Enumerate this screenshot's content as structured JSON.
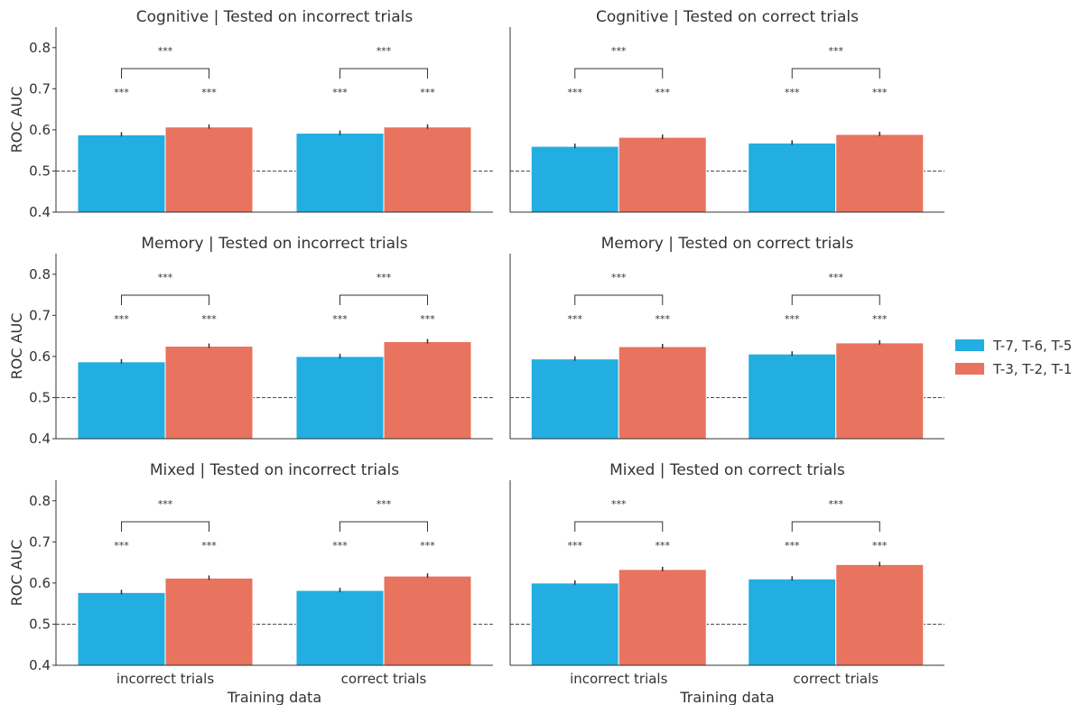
{
  "chart_data": {
    "type": "bar",
    "layout": {
      "rows": 3,
      "cols": 2
    },
    "xlabel": "Training data",
    "ylabel": "ROC AUC",
    "ylim": [
      0.4,
      0.85
    ],
    "yticks": [
      "0.4",
      "0.5",
      "0.6",
      "0.7",
      "0.8"
    ],
    "reference_line": 0.5,
    "categories": [
      "incorrect trials",
      "correct trials"
    ],
    "legend": {
      "placement": "right",
      "entries": [
        {
          "label": "T-7, T-6, T-5",
          "color": "#22aee0"
        },
        {
          "label": "T-3, T-2, T-1",
          "color": "#e8735e"
        }
      ]
    },
    "significance_label": "***",
    "panels": [
      {
        "title": "Cognitive | Tested on incorrect trials",
        "series": [
          {
            "name": "T-7, T-6, T-5",
            "values": [
              0.588,
              0.592
            ]
          },
          {
            "name": "T-3, T-2, T-1",
            "values": [
              0.607,
              0.607
            ]
          }
        ]
      },
      {
        "title": "Cognitive | Tested on correct trials",
        "series": [
          {
            "name": "T-7, T-6, T-5",
            "values": [
              0.56,
              0.568
            ]
          },
          {
            "name": "T-3, T-2, T-1",
            "values": [
              0.582,
              0.589
            ]
          }
        ]
      },
      {
        "title": "Memory | Tested on incorrect trials",
        "series": [
          {
            "name": "T-7, T-6, T-5",
            "values": [
              0.587,
              0.6
            ]
          },
          {
            "name": "T-3, T-2, T-1",
            "values": [
              0.625,
              0.636
            ]
          }
        ]
      },
      {
        "title": "Memory | Tested on correct trials",
        "series": [
          {
            "name": "T-7, T-6, T-5",
            "values": [
              0.594,
              0.606
            ]
          },
          {
            "name": "T-3, T-2, T-1",
            "values": [
              0.624,
              0.633
            ]
          }
        ]
      },
      {
        "title": "Mixed | Tested on incorrect trials",
        "series": [
          {
            "name": "T-7, T-6, T-5",
            "values": [
              0.577,
              0.582
            ]
          },
          {
            "name": "T-3, T-2, T-1",
            "values": [
              0.612,
              0.617
            ]
          }
        ]
      },
      {
        "title": "Mixed | Tested on correct trials",
        "series": [
          {
            "name": "T-7, T-6, T-5",
            "values": [
              0.6,
              0.61
            ]
          },
          {
            "name": "T-3, T-2, T-1",
            "values": [
              0.633,
              0.645
            ]
          }
        ]
      }
    ]
  }
}
